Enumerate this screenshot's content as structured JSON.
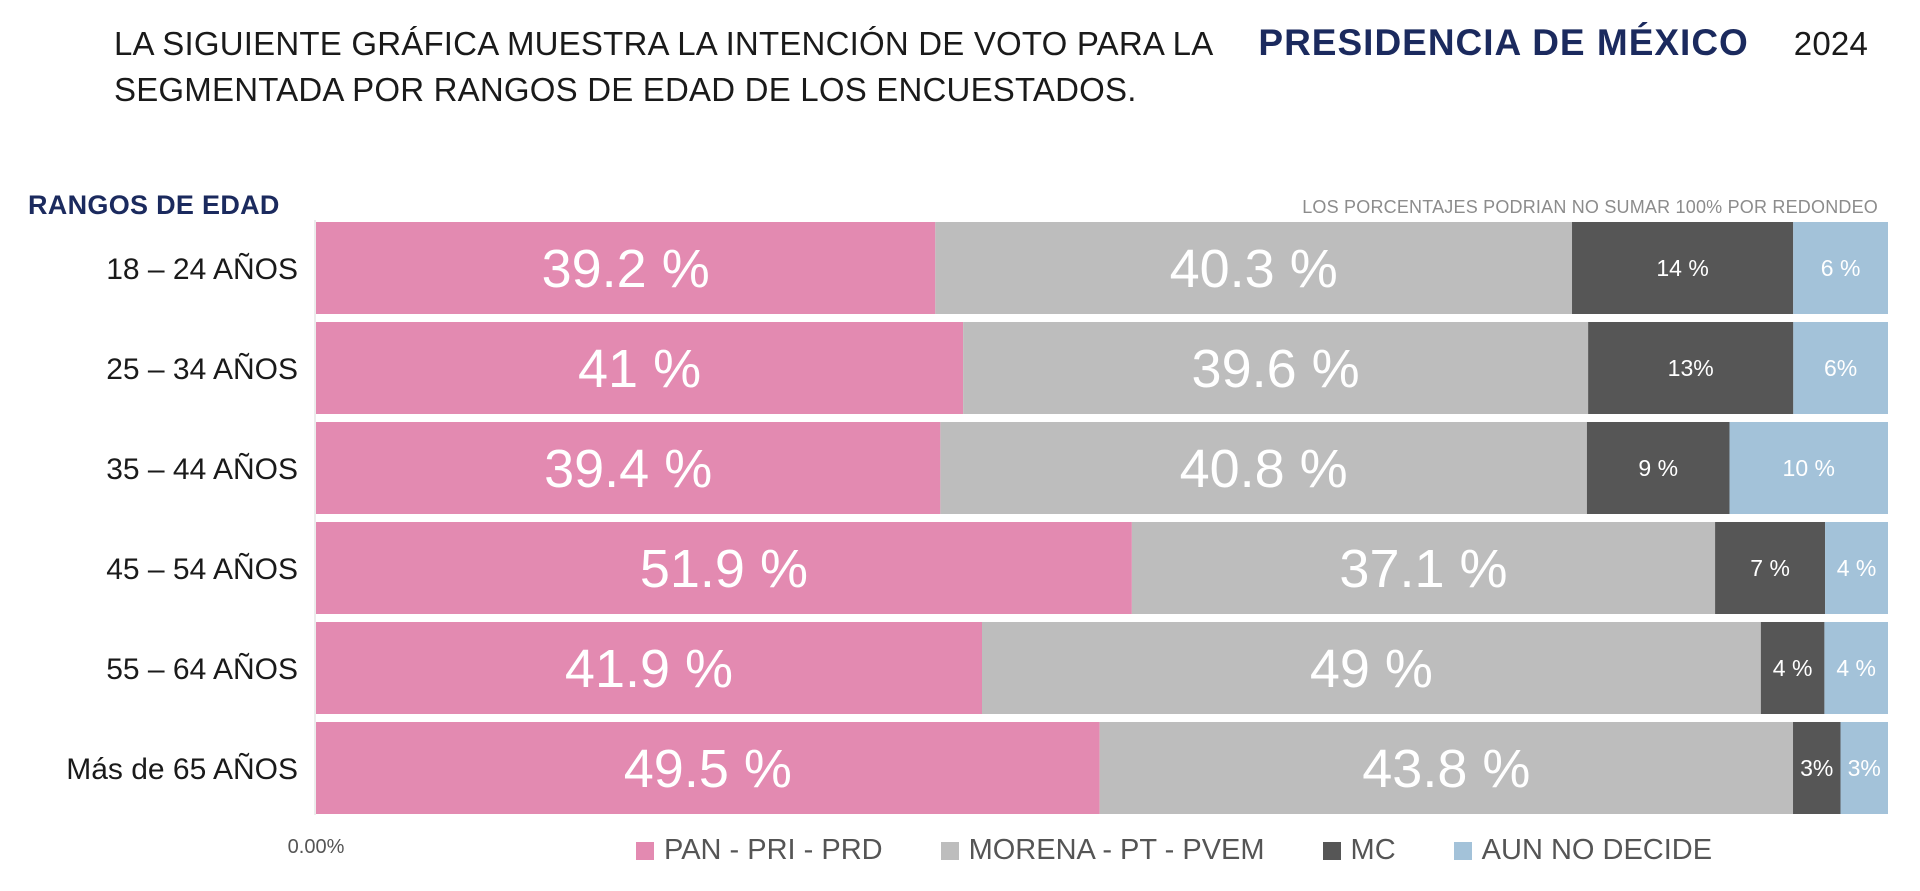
{
  "header": {
    "text_before": "LA SIGUIENTE GRÁFICA MUESTRA LA INTENCIÓN DE VOTO PARA LA",
    "highlight": "PRESIDENCIA DE MÉXICO",
    "year": "2024",
    "line2": "SEGMENTADA POR RANGOS DE EDAD DE LOS ENCUESTADOS."
  },
  "y_title": "RANGOS DE EDAD",
  "note": "LOS PORCENTAJES PODRIAN NO SUMAR 100% POR REDONDEO",
  "colors": {
    "pan_pri_prd": "#e38ab1",
    "morena_pt_pvem": "#bdbdbd",
    "mc": "#565656",
    "aun_no_decide": "#a3c2d9"
  },
  "chart_data": {
    "type": "bar",
    "orientation": "horizontal",
    "stacked": true,
    "categories": [
      "18 – 24 AÑOS",
      "25 – 34 AÑOS",
      "35 – 44 AÑOS",
      "45 – 54 AÑOS",
      "55 – 64 AÑOS",
      "Más de 65 AÑOS"
    ],
    "series": [
      {
        "name": "PAN - PRI - PRD",
        "color_key": "pan_pri_prd",
        "values": [
          39.2,
          41,
          39.4,
          51.9,
          41.9,
          49.5
        ],
        "labels": [
          "39.2 %",
          "41 %",
          "39.4 %",
          "51.9 %",
          "41.9 %",
          "49.5 %"
        ]
      },
      {
        "name": "MORENA - PT - PVEM",
        "color_key": "morena_pt_pvem",
        "values": [
          40.3,
          39.6,
          40.8,
          37.1,
          49,
          43.8
        ],
        "labels": [
          "40.3 %",
          "39.6 %",
          "40.8 %",
          "37.1 %",
          "49 %",
          "43.8 %"
        ]
      },
      {
        "name": "MC",
        "color_key": "mc",
        "values": [
          14,
          13,
          9,
          7,
          4,
          3
        ],
        "labels": [
          "14 %",
          "13%",
          "9 %",
          "7 %",
          "4 %",
          "3%"
        ]
      },
      {
        "name": "AUN NO DECIDE",
        "color_key": "aun_no_decide",
        "values": [
          6,
          6,
          10,
          4,
          4,
          3
        ],
        "labels": [
          "6 %",
          "6%",
          "10 %",
          "4 %",
          "4 %",
          "3%"
        ]
      }
    ],
    "x_tick_label": "0.00%",
    "legend_position": "bottom"
  }
}
